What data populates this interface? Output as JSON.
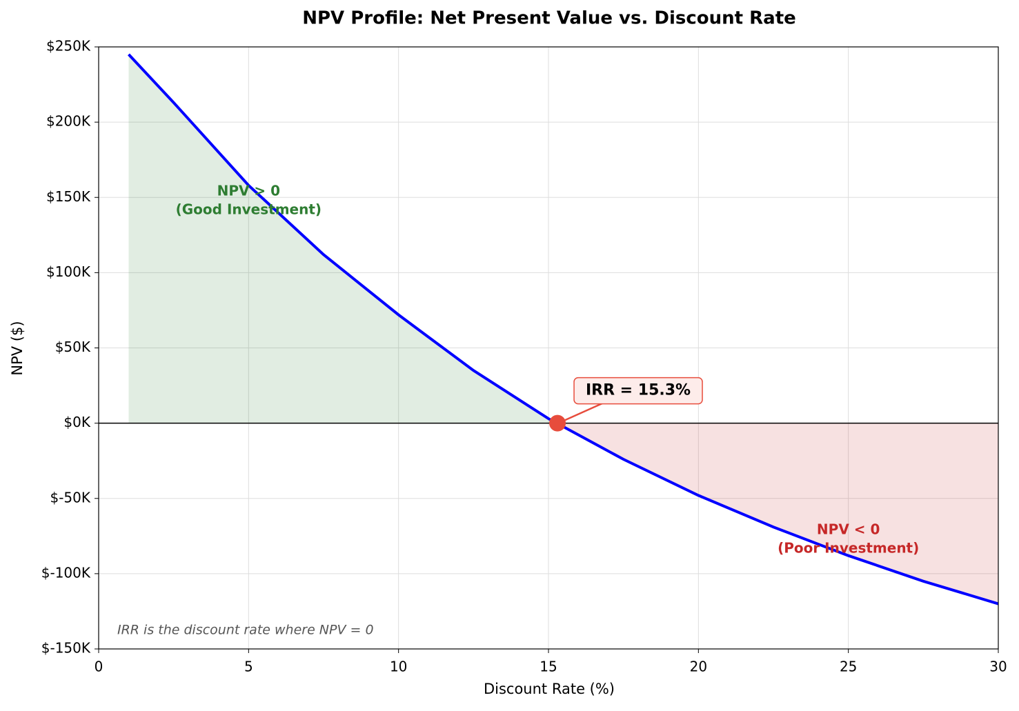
{
  "chart_data": {
    "type": "line",
    "title": "NPV Profile: Net Present Value vs. Discount Rate",
    "xlabel": "Discount Rate (%)",
    "ylabel": "NPV ($)",
    "x": [
      1,
      2.5,
      5,
      7.5,
      10,
      12.5,
      15,
      17.5,
      20,
      22.5,
      25,
      27.5,
      30
    ],
    "series": [
      {
        "name": "NPV",
        "color": "#0000ff",
        "values": [
          245000,
          213000,
          158000,
          112000,
          72000,
          35000,
          3000,
          -24000,
          -48000,
          -69000,
          -88000,
          -105000,
          -120000
        ]
      }
    ],
    "xlim": [
      0,
      30
    ],
    "xticks": [
      0,
      5,
      10,
      15,
      20,
      25,
      30
    ],
    "ylim": [
      -150000,
      250000
    ],
    "yticks": [
      {
        "value": -150000,
        "label": "$-150K"
      },
      {
        "value": -100000,
        "label": "$-100K"
      },
      {
        "value": -50000,
        "label": "$-50K"
      },
      {
        "value": 0,
        "label": "$0K"
      },
      {
        "value": 50000,
        "label": "$50K"
      },
      {
        "value": 100000,
        "label": "$100K"
      },
      {
        "value": 150000,
        "label": "$150K"
      },
      {
        "value": 200000,
        "label": "$200K"
      },
      {
        "value": 250000,
        "label": "$250K"
      }
    ],
    "grid": true,
    "positive_color": "#2e7d32",
    "negative_color": "#c62828",
    "irr": {
      "x": 15.3,
      "y": 0,
      "label": "IRR = 15.3%",
      "color": "#e74c3c"
    },
    "annotations": [
      {
        "lines": [
          "NPV > 0",
          "(Good Investment)"
        ],
        "x": 5,
        "y": 150000,
        "color": "#2e7d32"
      },
      {
        "lines": [
          "NPV < 0",
          "(Poor Investment)"
        ],
        "x": 25,
        "y": -75000,
        "color": "#c62828"
      }
    ],
    "footnote": "IRR is the discount rate where NPV = 0"
  }
}
